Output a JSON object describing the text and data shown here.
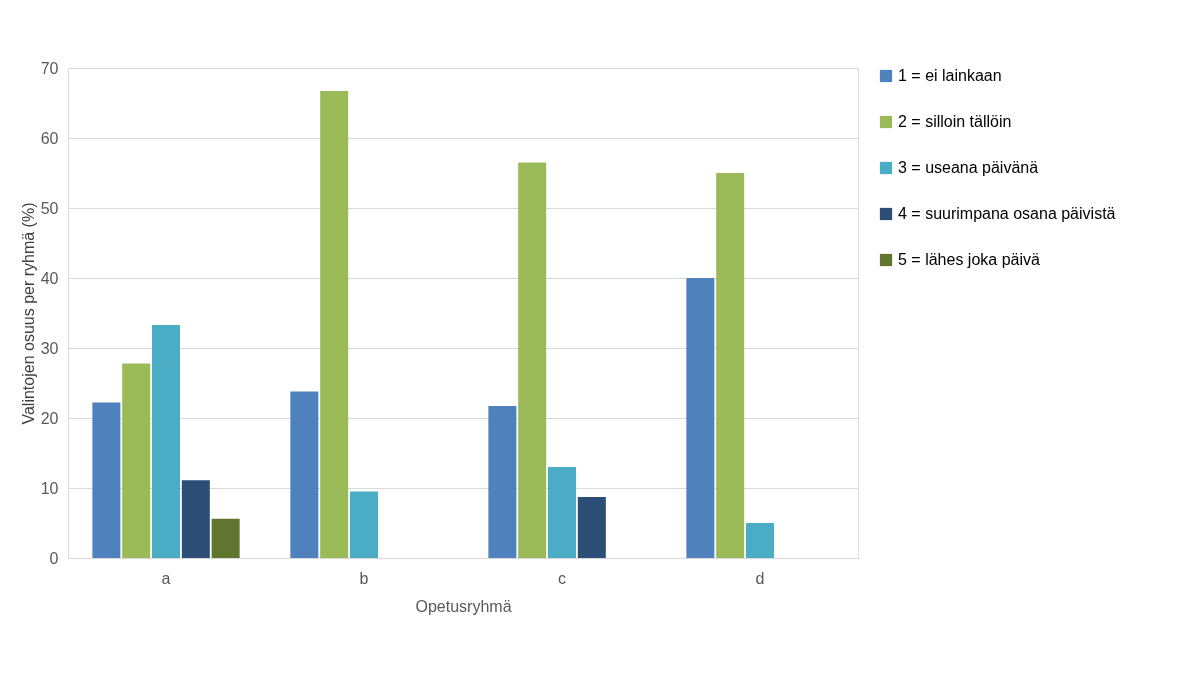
{
  "chart_data": {
    "type": "bar",
    "xlabel": "Opetusryhmä",
    "ylabel": "Valintojen osuus per ryhmä (%)",
    "categories": [
      "a",
      "b",
      "c",
      "d"
    ],
    "series": [
      {
        "name": "1 = ei lainkaan",
        "color": "#4f81bd",
        "values": [
          22.2,
          23.8,
          21.7,
          40
        ]
      },
      {
        "name": "2 = silloin tällöin",
        "color": "#9bbb59",
        "values": [
          27.8,
          66.7,
          56.5,
          55
        ]
      },
      {
        "name": "3 = useana päivänä",
        "color": "#4bacc6",
        "values": [
          33.3,
          9.5,
          13,
          5
        ]
      },
      {
        "name": "4 = suurimpana osana päivistä",
        "color": "#2c4d75",
        "values": [
          11.1,
          null,
          8.7,
          null
        ]
      },
      {
        "name": "5 = lähes joka päivä",
        "color": "#5f7530",
        "values": [
          5.6,
          null,
          null,
          null
        ]
      }
    ],
    "ylim": [
      0,
      70
    ],
    "yticks": [
      0,
      10,
      20,
      30,
      40,
      50,
      60,
      70
    ],
    "grid": "y",
    "legend": "right"
  }
}
